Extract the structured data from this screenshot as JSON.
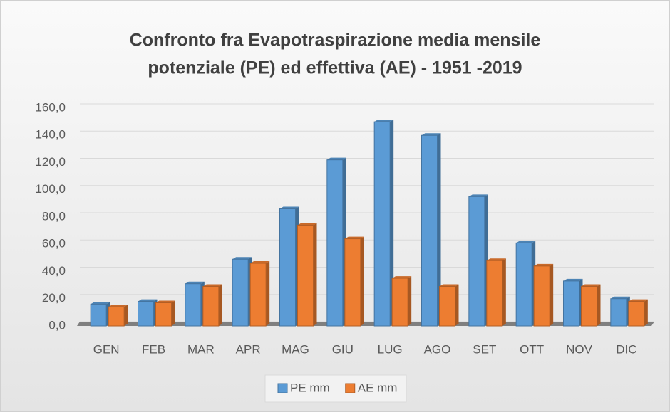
{
  "chart_data": {
    "type": "bar",
    "title": [
      "Confronto fra Evapotraspirazione  media mensile",
      "potenziale (PE) ed effettiva (AE) - 1951 -2019"
    ],
    "categories": [
      "GEN",
      "FEB",
      "MAR",
      "APR",
      "MAG",
      "GIU",
      "LUG",
      "AGO",
      "SET",
      "OTT",
      "NOV",
      "DIC"
    ],
    "series": [
      {
        "name": "PE mm",
        "color": "#5b9bd5",
        "values": [
          16,
          18,
          31,
          49,
          86,
          122,
          150,
          140,
          95,
          61,
          33,
          20
        ]
      },
      {
        "name": "AE mm",
        "color": "#ed7d31",
        "values": [
          14,
          17,
          29,
          46,
          74,
          64,
          35,
          29,
          48,
          44,
          29,
          18
        ]
      }
    ],
    "ylim": [
      0,
      160
    ],
    "yticks": [
      {
        "value": 0,
        "label": "0,0"
      },
      {
        "value": 20,
        "label": "20,0"
      },
      {
        "value": 40,
        "label": "40,0"
      },
      {
        "value": 60,
        "label": "60,0"
      },
      {
        "value": 80,
        "label": "80,0"
      },
      {
        "value": 100,
        "label": "100,0"
      },
      {
        "value": 120,
        "label": "120,0"
      },
      {
        "value": 140,
        "label": "140,0"
      },
      {
        "value": 160,
        "label": "160,0"
      }
    ],
    "grid": true,
    "legend": "bottom"
  }
}
